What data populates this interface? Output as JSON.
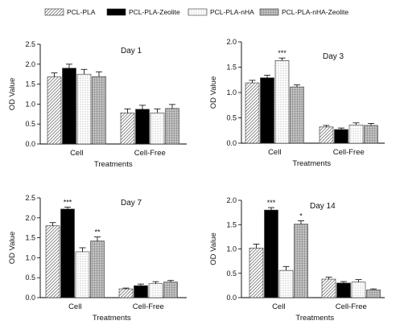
{
  "chart_data": {
    "type": "bar",
    "legend": [
      {
        "name": "PCL-PLA",
        "pattern": "hatch-diag"
      },
      {
        "name": "PCL-PLA-Zeolite",
        "pattern": "solid"
      },
      {
        "name": "PCL-PLA-nHA",
        "pattern": "dots"
      },
      {
        "name": "PCL-PLA-nHA-Zeolite",
        "pattern": "grid"
      }
    ],
    "legend_placement": "top",
    "panels": [
      {
        "title": "Day 1",
        "ylabel": "OD Value",
        "xlabel": "Treatments",
        "ylim": [
          0,
          2.5
        ],
        "yticks": [
          "0.0",
          "0.5",
          "1.0",
          "1.5",
          "2.0",
          "2.5"
        ],
        "categories": [
          "Cell",
          "Cell-Free"
        ],
        "series": [
          {
            "name": "PCL-PLA",
            "values": [
              1.68,
              0.78
            ],
            "errors": [
              0.1,
              0.1
            ],
            "sig": [
              "",
              ""
            ]
          },
          {
            "name": "PCL-PLA-Zeolite",
            "values": [
              1.9,
              0.87
            ],
            "errors": [
              0.1,
              0.1
            ],
            "sig": [
              "",
              ""
            ]
          },
          {
            "name": "PCL-PLA-nHA",
            "values": [
              1.75,
              0.78
            ],
            "errors": [
              0.12,
              0.1
            ],
            "sig": [
              "",
              ""
            ]
          },
          {
            "name": "PCL-PLA-nHA-Zeolite",
            "values": [
              1.69,
              0.89
            ],
            "errors": [
              0.12,
              0.1
            ],
            "sig": [
              "",
              ""
            ]
          }
        ]
      },
      {
        "title": "Day 3",
        "ylabel": "OD Value",
        "xlabel": "Treatments",
        "ylim": [
          0,
          2.0
        ],
        "yticks": [
          "0.0",
          "0.5",
          "1.0",
          "1.5",
          "2.0"
        ],
        "categories": [
          "Cell",
          "Cell-Free"
        ],
        "series": [
          {
            "name": "PCL-PLA",
            "values": [
              1.19,
              0.32
            ],
            "errors": [
              0.05,
              0.03
            ],
            "sig": [
              "",
              ""
            ]
          },
          {
            "name": "PCL-PLA-Zeolite",
            "values": [
              1.29,
              0.27
            ],
            "errors": [
              0.05,
              0.03
            ],
            "sig": [
              "",
              ""
            ]
          },
          {
            "name": "PCL-PLA-nHA",
            "values": [
              1.63,
              0.36
            ],
            "errors": [
              0.05,
              0.04
            ],
            "sig": [
              "***",
              ""
            ]
          },
          {
            "name": "PCL-PLA-nHA-Zeolite",
            "values": [
              1.11,
              0.35
            ],
            "errors": [
              0.04,
              0.04
            ],
            "sig": [
              "",
              ""
            ]
          }
        ]
      },
      {
        "title": "Day 7",
        "ylabel": "OD Value",
        "xlabel": "Treatments",
        "ylim": [
          0,
          2.5
        ],
        "yticks": [
          "0.0",
          "0.5",
          "1.0",
          "1.5",
          "2.0",
          "2.5"
        ],
        "categories": [
          "Cell",
          "Cell-Free"
        ],
        "series": [
          {
            "name": "PCL-PLA",
            "values": [
              1.8,
              0.22
            ],
            "errors": [
              0.08,
              0.02
            ],
            "sig": [
              "",
              ""
            ]
          },
          {
            "name": "PCL-PLA-Zeolite",
            "values": [
              2.22,
              0.3
            ],
            "errors": [
              0.05,
              0.04
            ],
            "sig": [
              "***",
              ""
            ]
          },
          {
            "name": "PCL-PLA-nHA",
            "values": [
              1.15,
              0.35
            ],
            "errors": [
              0.1,
              0.05
            ],
            "sig": [
              "",
              ""
            ]
          },
          {
            "name": "PCL-PLA-nHA-Zeolite",
            "values": [
              1.42,
              0.39
            ],
            "errors": [
              0.1,
              0.04
            ],
            "sig": [
              "**",
              ""
            ]
          }
        ]
      },
      {
        "title": "Day 14",
        "ylabel": "OD Value",
        "xlabel": "Treatments",
        "ylim": [
          0,
          2.0
        ],
        "yticks": [
          "0.0",
          "0.5",
          "1.0",
          "1.5",
          "2.0"
        ],
        "categories": [
          "Cell",
          "Cell-Free"
        ],
        "series": [
          {
            "name": "PCL-PLA",
            "values": [
              1.02,
              0.38
            ],
            "errors": [
              0.08,
              0.04
            ],
            "sig": [
              "",
              ""
            ]
          },
          {
            "name": "PCL-PLA-Zeolite",
            "values": [
              1.8,
              0.3
            ],
            "errors": [
              0.05,
              0.03
            ],
            "sig": [
              "***",
              ""
            ]
          },
          {
            "name": "PCL-PLA-nHA",
            "values": [
              0.56,
              0.32
            ],
            "errors": [
              0.08,
              0.05
            ],
            "sig": [
              "",
              ""
            ]
          },
          {
            "name": "PCL-PLA-nHA-Zeolite",
            "values": [
              1.51,
              0.16
            ],
            "errors": [
              0.07,
              0.02
            ],
            "sig": [
              "*",
              ""
            ]
          }
        ]
      }
    ]
  }
}
